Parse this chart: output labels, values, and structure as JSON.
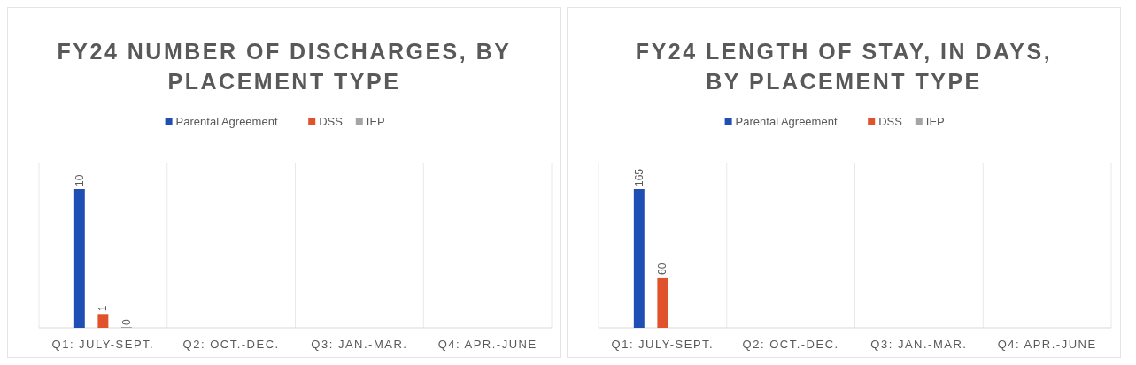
{
  "chart_data": [
    {
      "type": "bar",
      "title": "FY24 NUMBER OF DISCHARGES, BY PLACEMENT TYPE",
      "categories": [
        "Q1: JULY-SEPT.",
        "Q2: OCT.-DEC.",
        "Q3: JAN.-MAR.",
        "Q4: APR.-JUNE"
      ],
      "series": [
        {
          "name": "Parental Agreement",
          "color": "#1f4fb4",
          "values": [
            10,
            null,
            null,
            null
          ]
        },
        {
          "name": "DSS",
          "color": "#e0522b",
          "values": [
            1,
            null,
            null,
            null
          ]
        },
        {
          "name": "IEP",
          "color": "#a5a5a5",
          "values": [
            0,
            null,
            null,
            null
          ]
        }
      ],
      "data_labels": true,
      "legend": "top",
      "grid": "x"
    },
    {
      "type": "bar",
      "title": "FY24 LENGTH OF STAY, IN DAYS, BY PLACEMENT TYPE",
      "categories": [
        "Q1: JULY-SEPT.",
        "Q2: OCT.-DEC.",
        "Q3: JAN.-MAR.",
        "Q4: APR.-JUNE"
      ],
      "series": [
        {
          "name": "Parental Agreement",
          "color": "#1f4fb4",
          "values": [
            165,
            null,
            null,
            null
          ]
        },
        {
          "name": "DSS",
          "color": "#e0522b",
          "values": [
            60,
            null,
            null,
            null
          ]
        },
        {
          "name": "IEP",
          "color": "#a5a5a5",
          "values": [
            null,
            null,
            null,
            null
          ]
        }
      ],
      "data_labels": true,
      "legend": "top",
      "grid": "x"
    }
  ]
}
